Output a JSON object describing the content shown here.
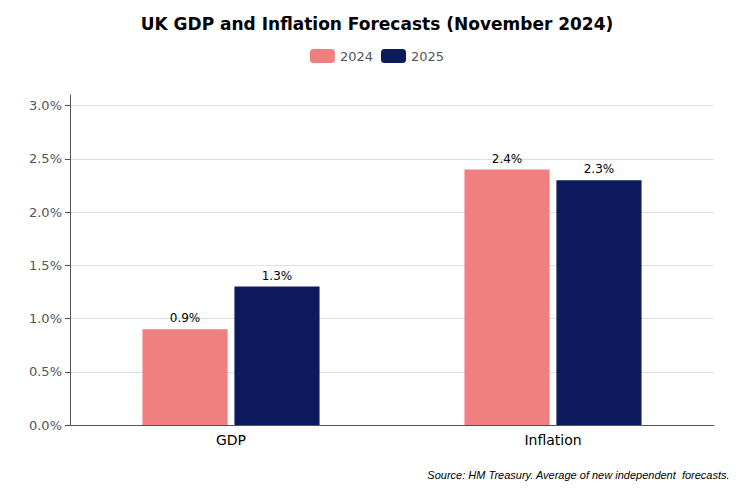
{
  "chart_data": {
    "type": "bar",
    "title": "UK GDP and Inflation Forecasts (November 2024)",
    "categories": [
      "GDP",
      "Inflation"
    ],
    "series": [
      {
        "name": "2024",
        "color": "#F08080",
        "values": [
          0.9,
          2.4
        ],
        "value_labels": [
          "0.9%",
          "2.4%"
        ]
      },
      {
        "name": "2025",
        "color": "#0D1B5E",
        "values": [
          1.3,
          2.3
        ],
        "value_labels": [
          "1.3%",
          "2.3%"
        ]
      }
    ],
    "ylim": [
      0,
      3.1
    ],
    "yticks": [
      {
        "value": 0.0,
        "label": "0.0%"
      },
      {
        "value": 0.5,
        "label": "0.5%"
      },
      {
        "value": 1.0,
        "label": "1.0%"
      },
      {
        "value": 1.5,
        "label": "1.5%"
      },
      {
        "value": 2.0,
        "label": "2.0%"
      },
      {
        "value": 2.5,
        "label": "2.5%"
      },
      {
        "value": 3.0,
        "label": "3.0%"
      }
    ],
    "grid": true,
    "legend": "top",
    "data_labels": true,
    "annotations": [
      "Source: HM Treasury. Average of new independent  forecasts."
    ]
  }
}
